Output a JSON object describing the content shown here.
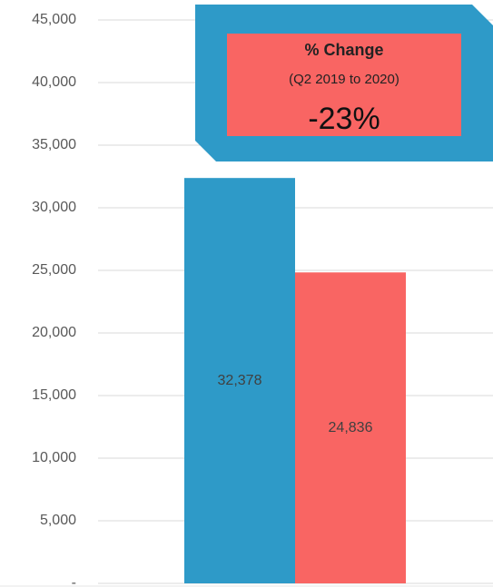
{
  "chart_data": {
    "type": "bar",
    "categories": [
      null,
      null
    ],
    "values": [
      32378,
      24836
    ],
    "value_labels": [
      "32,378",
      "24,836"
    ],
    "colors": [
      "#2e9ac8",
      "#f96563"
    ],
    "ylim": [
      0,
      45000
    ],
    "yticks": [
      {
        "value": 0,
        "label": "-"
      },
      {
        "value": 5000,
        "label": "5,000"
      },
      {
        "value": 10000,
        "label": "10,000"
      },
      {
        "value": 15000,
        "label": "15,000"
      },
      {
        "value": 20000,
        "label": "20,000"
      },
      {
        "value": 25000,
        "label": "25,000"
      },
      {
        "value": 30000,
        "label": "30,000"
      },
      {
        "value": 35000,
        "label": "35,000"
      },
      {
        "value": 40000,
        "label": "40,000"
      },
      {
        "value": 45000,
        "label": "45,000"
      }
    ],
    "grid": true,
    "annotation": {
      "title": "% Change",
      "subtitle": "(Q2 2019 to 2020)",
      "value": "-23%"
    }
  }
}
